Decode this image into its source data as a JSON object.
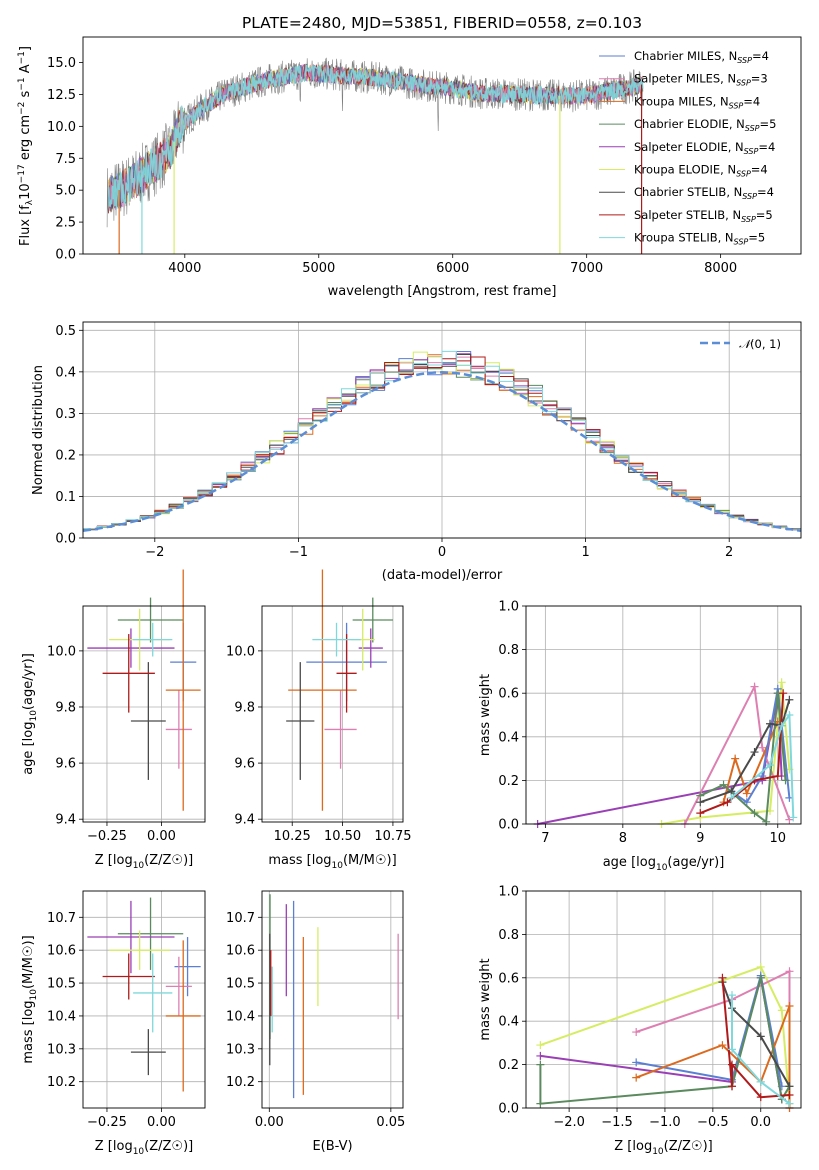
{
  "colors": {
    "chabrier_miles": "#5b7fd3",
    "salpeter_miles": "#dd7fb1",
    "kroupa_miles": "#dc6a1e",
    "chabrier_elodie": "#5a8a5e",
    "salpeter_elodie": "#9a3fb5",
    "kroupa_elodie": "#d6ec63",
    "chabrier_stelib": "#4a4a4a",
    "salpeter_stelib": "#b01a1a",
    "kroupa_stelib": "#7fd8dc",
    "normal": "#5b8ed6",
    "grid": "#b0b0b0"
  },
  "chart_data": [
    {
      "id": "spectrum",
      "type": "line",
      "title": "PLATE=2480, MJD=53851, FIBERID=0558, z=0.103",
      "xlabel": "wavelength [Angstrom, rest frame]",
      "ylabel": "Flux [f",
      "ylabel_parts": [
        "Flux [f",
        "λ",
        "10",
        "−17",
        " erg cm",
        "−2",
        " s",
        "−1",
        " A",
        "−1",
        "]"
      ],
      "xlim": [
        3240,
        8600
      ],
      "ylim": [
        0,
        17
      ],
      "xticks": [
        "4000",
        "5000",
        "6000",
        "7000",
        "8000"
      ],
      "yticks": [
        "0.0",
        "2.5",
        "5.0",
        "7.5",
        "10.0",
        "12.5",
        "15.0"
      ],
      "grid": false,
      "legend_position": "upper right",
      "legend": [
        {
          "label": "Chabrier MILES, N",
          "sub": "SSP",
          "n": "=4",
          "color_key": "chabrier_miles"
        },
        {
          "label": "Salpeter MILES, N",
          "sub": "SSP",
          "n": "=3",
          "color_key": "salpeter_miles"
        },
        {
          "label": "Kroupa MILES, N",
          "sub": "SSP",
          "n": "=4",
          "color_key": "kroupa_miles"
        },
        {
          "label": "Chabrier ELODIE, N",
          "sub": "SSP",
          "n": "=5",
          "color_key": "chabrier_elodie"
        },
        {
          "label": "Salpeter ELODIE, N",
          "sub": "SSP",
          "n": "=4",
          "color_key": "salpeter_elodie"
        },
        {
          "label": "Kroupa ELODIE, N",
          "sub": "SSP",
          "n": "=4",
          "color_key": "kroupa_elodie"
        },
        {
          "label": "Chabrier STELIB, N",
          "sub": "SSP",
          "n": "=4",
          "color_key": "chabrier_stelib"
        },
        {
          "label": "Salpeter STELIB, N",
          "sub": "SSP",
          "n": "=5",
          "color_key": "salpeter_stelib"
        },
        {
          "label": "Kroupa STELIB, N",
          "sub": "SSP",
          "n": "=5",
          "color_key": "kroupa_stelib"
        }
      ],
      "continuum": {
        "x": [
          3420,
          3550,
          3680,
          3800,
          3900,
          3960,
          4100,
          4300,
          4600,
          4900,
          5200,
          5500,
          5800,
          6000,
          6200,
          6500,
          6800,
          7000,
          7200,
          7420
        ],
        "y": [
          4.6,
          5.2,
          6.2,
          7.2,
          8.2,
          10.0,
          11.2,
          12.6,
          13.6,
          14.2,
          14.0,
          13.7,
          13.2,
          13.0,
          12.6,
          12.5,
          12.4,
          12.4,
          12.8,
          13.3
        ]
      },
      "dropouts": [
        {
          "x": 3510,
          "color_key": "kroupa_miles"
        },
        {
          "x": 3680,
          "color_key": "kroupa_stelib"
        },
        {
          "x": 3920,
          "color_key": "kroupa_elodie"
        },
        {
          "x": 6800,
          "color_key": "kroupa_elodie"
        },
        {
          "x": 7410,
          "color_key": "salpeter_stelib"
        }
      ]
    },
    {
      "id": "residuals",
      "type": "histogram",
      "xlabel": "(data-model)/error",
      "ylabel": "Normed distribution",
      "xlim": [
        -2.5,
        2.5
      ],
      "ylim": [
        0,
        0.52
      ],
      "xticks": [
        "−2",
        "−1",
        "0",
        "1",
        "2"
      ],
      "xtick_values": [
        -2,
        -1,
        0,
        1,
        2
      ],
      "yticks": [
        "0.0",
        "0.1",
        "0.2",
        "0.3",
        "0.4",
        "0.5"
      ],
      "ytick_values": [
        0,
        0.1,
        0.2,
        0.3,
        0.4,
        0.5
      ],
      "grid": true,
      "bin_width": 0.1,
      "bin_start": -2.5,
      "legend": [
        {
          "label": "(0, 1)",
          "prefix": "𝒩",
          "color_key": "normal"
        }
      ],
      "legend_position": "upper right"
    },
    {
      "id": "age_vs_Z",
      "type": "errorbar",
      "xlabel": "Z [log10(Z/Z☉)]",
      "ylabel": "age  [log10(age/yr)]",
      "xlim": [
        -0.36,
        0.2
      ],
      "ylim": [
        9.39,
        10.16
      ],
      "xticks": [
        "−0.25",
        "0.00"
      ],
      "xtick_values": [
        -0.25,
        0.0
      ],
      "yticks": [
        "9.4",
        "9.6",
        "9.8",
        "10.0"
      ],
      "ytick_values": [
        9.4,
        9.6,
        9.8,
        10.0
      ],
      "grid": true,
      "points": [
        {
          "color_key": "chabrier_miles",
          "x": 0.1,
          "xerr": 0.06,
          "y": 9.96,
          "yerr": 0.14
        },
        {
          "color_key": "salpeter_miles",
          "x": 0.08,
          "xerr": 0.06,
          "y": 9.72,
          "yerr": 0.14
        },
        {
          "color_key": "kroupa_miles",
          "x": 0.1,
          "xerr": 0.08,
          "y": 9.86,
          "yerr": 0.43
        },
        {
          "color_key": "chabrier_elodie",
          "x": -0.05,
          "xerr": 0.15,
          "y": 10.11,
          "yerr": 0.08
        },
        {
          "color_key": "salpeter_elodie",
          "x": -0.14,
          "xerr": 0.2,
          "y": 10.01,
          "yerr": 0.07
        },
        {
          "color_key": "kroupa_elodie",
          "x": -0.1,
          "xerr": 0.14,
          "y": 10.04,
          "yerr": 0.11
        },
        {
          "color_key": "chabrier_stelib",
          "x": -0.06,
          "xerr": 0.08,
          "y": 9.75,
          "yerr": 0.21
        },
        {
          "color_key": "salpeter_stelib",
          "x": -0.15,
          "xerr": 0.12,
          "y": 9.92,
          "yerr": 0.14
        },
        {
          "color_key": "kroupa_stelib",
          "x": -0.04,
          "xerr": 0.09,
          "y": 10.04,
          "yerr": 0.06
        }
      ]
    },
    {
      "id": "age_vs_mass",
      "type": "errorbar",
      "xlabel": "mass [log10(M/M☉)]",
      "ylabel": "",
      "xlim": [
        10.1,
        10.8
      ],
      "ylim": [
        9.39,
        10.16
      ],
      "xticks": [
        "10.25",
        "10.50",
        "10.75"
      ],
      "xtick_values": [
        10.25,
        10.5,
        10.75
      ],
      "yticks": [
        "9.4",
        "9.6",
        "9.8",
        "10.0"
      ],
      "ytick_values": [
        9.4,
        9.6,
        9.8,
        10.0
      ],
      "grid": true,
      "points": [
        {
          "color_key": "chabrier_miles",
          "x": 10.52,
          "xerr": 0.2,
          "y": 9.96,
          "yerr": 0.14
        },
        {
          "color_key": "salpeter_miles",
          "x": 10.49,
          "xerr": 0.08,
          "y": 9.72,
          "yerr": 0.14
        },
        {
          "color_key": "kroupa_miles",
          "x": 10.4,
          "xerr": 0.17,
          "y": 9.86,
          "yerr": 0.43
        },
        {
          "color_key": "chabrier_elodie",
          "x": 10.65,
          "xerr": 0.1,
          "y": 10.11,
          "yerr": 0.08
        },
        {
          "color_key": "salpeter_elodie",
          "x": 10.64,
          "xerr": 0.06,
          "y": 10.01,
          "yerr": 0.07
        },
        {
          "color_key": "kroupa_elodie",
          "x": 10.6,
          "xerr": 0.06,
          "y": 10.04,
          "yerr": 0.11
        },
        {
          "color_key": "chabrier_stelib",
          "x": 10.29,
          "xerr": 0.07,
          "y": 9.75,
          "yerr": 0.21
        },
        {
          "color_key": "salpeter_stelib",
          "x": 10.52,
          "xerr": 0.05,
          "y": 9.92,
          "yerr": 0.14
        },
        {
          "color_key": "kroupa_stelib",
          "x": 10.47,
          "xerr": 0.12,
          "y": 10.04,
          "yerr": 0.06
        }
      ]
    },
    {
      "id": "weight_vs_age",
      "type": "line",
      "xlabel": "age  [log10(age/yr)]",
      "ylabel": "mass weight",
      "xlim": [
        6.75,
        10.3
      ],
      "ylim": [
        0,
        1
      ],
      "xticks": [
        "7",
        "8",
        "9",
        "10"
      ],
      "xtick_values": [
        7,
        8,
        9,
        10
      ],
      "yticks": [
        "0.0",
        "0.2",
        "0.4",
        "0.6",
        "0.8",
        "1.0"
      ],
      "ytick_values": [
        0,
        0.2,
        0.4,
        0.6,
        0.8,
        1.0
      ],
      "grid": true,
      "series": [
        {
          "color_key": "salpeter_elodie",
          "x": [
            6.9,
            9.8,
            10.0,
            10.05
          ],
          "y": [
            0.0,
            0.2,
            0.6,
            0.22
          ]
        },
        {
          "color_key": "kroupa_elodie",
          "x": [
            8.5,
            9.0,
            9.9,
            10.05,
            10.15
          ],
          "y": [
            0.0,
            0.03,
            0.06,
            0.65,
            0.25
          ]
        },
        {
          "color_key": "salpeter_miles",
          "x": [
            8.8,
            9.7,
            9.8,
            10.15
          ],
          "y": [
            0.0,
            0.63,
            0.35,
            0.02
          ]
        },
        {
          "color_key": "kroupa_miles",
          "x": [
            9.3,
            9.45,
            9.6,
            10.0
          ],
          "y": [
            0.1,
            0.3,
            0.14,
            0.47
          ]
        },
        {
          "color_key": "chabrier_miles",
          "x": [
            9.4,
            9.6,
            9.8,
            10.0,
            10.15
          ],
          "y": [
            0.15,
            0.1,
            0.22,
            0.62,
            0.12
          ]
        },
        {
          "color_key": "chabrier_elodie",
          "x": [
            9.0,
            9.3,
            9.7,
            9.85,
            10.0,
            10.1
          ],
          "y": [
            0.13,
            0.18,
            0.05,
            0.01,
            0.6,
            0.2
          ]
        },
        {
          "color_key": "chabrier_stelib",
          "x": [
            9.0,
            9.4,
            9.7,
            9.9,
            10.05,
            10.15
          ],
          "y": [
            0.1,
            0.15,
            0.33,
            0.46,
            0.45,
            0.57
          ]
        },
        {
          "color_key": "salpeter_stelib",
          "x": [
            9.0,
            9.35,
            9.7,
            10.0,
            10.07
          ],
          "y": [
            0.05,
            0.1,
            0.2,
            0.22,
            0.6
          ]
        },
        {
          "color_key": "kroupa_stelib",
          "x": [
            9.4,
            9.9,
            10.05,
            10.15,
            10.2
          ],
          "y": [
            0.12,
            0.27,
            0.45,
            0.5,
            0.03
          ]
        }
      ]
    },
    {
      "id": "mass_vs_Z",
      "type": "errorbar",
      "xlabel": "Z [log10(Z/Z☉)]",
      "ylabel": "mass [log10(M/M☉)]",
      "xlim": [
        -0.36,
        0.2
      ],
      "ylim": [
        10.12,
        10.78
      ],
      "xticks": [
        "−0.25",
        "0.00"
      ],
      "xtick_values": [
        -0.25,
        0.0
      ],
      "yticks": [
        "10.2",
        "10.3",
        "10.4",
        "10.5",
        "10.6",
        "10.7"
      ],
      "ytick_values": [
        10.2,
        10.3,
        10.4,
        10.5,
        10.6,
        10.7
      ],
      "grid": true,
      "points": [
        {
          "color_key": "chabrier_miles",
          "x": 0.12,
          "xerr": 0.06,
          "y": 10.55,
          "yerr": 0.09
        },
        {
          "color_key": "salpeter_miles",
          "x": 0.08,
          "xerr": 0.06,
          "y": 10.49,
          "yerr": 0.09
        },
        {
          "color_key": "kroupa_miles",
          "x": 0.1,
          "xerr": 0.08,
          "y": 10.4,
          "yerr": 0.23
        },
        {
          "color_key": "chabrier_elodie",
          "x": -0.05,
          "xerr": 0.15,
          "y": 10.65,
          "yerr": 0.11
        },
        {
          "color_key": "salpeter_elodie",
          "x": -0.14,
          "xerr": 0.2,
          "y": 10.64,
          "yerr": 0.11
        },
        {
          "color_key": "kroupa_elodie",
          "x": -0.1,
          "xerr": 0.14,
          "y": 10.6,
          "yerr": 0.06
        },
        {
          "color_key": "chabrier_stelib",
          "x": -0.06,
          "xerr": 0.08,
          "y": 10.29,
          "yerr": 0.07
        },
        {
          "color_key": "salpeter_stelib",
          "x": -0.15,
          "xerr": 0.12,
          "y": 10.52,
          "yerr": 0.07
        },
        {
          "color_key": "kroupa_stelib",
          "x": -0.04,
          "xerr": 0.09,
          "y": 10.47,
          "yerr": 0.12
        }
      ]
    },
    {
      "id": "mass_vs_ebv",
      "type": "errorbar",
      "xlabel": "E(B-V)",
      "ylabel": "",
      "xlim": [
        -0.003,
        0.055
      ],
      "ylim": [
        10.12,
        10.78
      ],
      "xticks": [
        "0.00",
        "0.05"
      ],
      "xtick_values": [
        0.0,
        0.05
      ],
      "yticks": [
        "10.2",
        "10.3",
        "10.4",
        "10.5",
        "10.6",
        "10.7"
      ],
      "ytick_values": [
        10.2,
        10.3,
        10.4,
        10.5,
        10.6,
        10.7
      ],
      "grid": true,
      "points": [
        {
          "color_key": "chabrier_miles",
          "x": 0.01,
          "xerr": 0,
          "y": 10.45,
          "yerr": 0.3
        },
        {
          "color_key": "salpeter_miles",
          "x": 0.053,
          "xerr": 0,
          "y": 10.52,
          "yerr": 0.13
        },
        {
          "color_key": "kroupa_miles",
          "x": 0.014,
          "xerr": 0,
          "y": 10.4,
          "yerr": 0.24
        },
        {
          "color_key": "chabrier_elodie",
          "x": 0.0003,
          "xerr": 0,
          "y": 10.55,
          "yerr": 0.22
        },
        {
          "color_key": "salpeter_elodie",
          "x": 0.007,
          "xerr": 0,
          "y": 10.6,
          "yerr": 0.14
        },
        {
          "color_key": "kroupa_elodie",
          "x": 0.02,
          "xerr": 0,
          "y": 10.55,
          "yerr": 0.12
        },
        {
          "color_key": "chabrier_stelib",
          "x": 0.0002,
          "xerr": 0,
          "y": 10.45,
          "yerr": 0.2
        },
        {
          "color_key": "salpeter_stelib",
          "x": 0.0006,
          "xerr": 0,
          "y": 10.5,
          "yerr": 0.1
        },
        {
          "color_key": "kroupa_stelib",
          "x": 0.0012,
          "xerr": 0,
          "y": 10.45,
          "yerr": 0.1
        }
      ]
    },
    {
      "id": "weight_vs_Z",
      "type": "line",
      "xlabel": "Z [log10(Z/Z☉)]",
      "ylabel": "mass weight",
      "xlim": [
        -2.45,
        0.42
      ],
      "ylim": [
        0,
        1
      ],
      "xticks": [
        "−2.0",
        "−1.5",
        "−1.0",
        "−0.5",
        "0.0"
      ],
      "xtick_values": [
        -2.0,
        -1.5,
        -1.0,
        -0.5,
        0.0
      ],
      "yticks": [
        "0.0",
        "0.2",
        "0.4",
        "0.6",
        "0.8",
        "1.0"
      ],
      "ytick_values": [
        0,
        0.2,
        0.4,
        0.6,
        0.8,
        1.0
      ],
      "grid": true,
      "series": [
        {
          "color_key": "kroupa_elodie",
          "x": [
            -2.3,
            0.0,
            0.22,
            0.3
          ],
          "y": [
            0.29,
            0.65,
            0.45,
            0.02
          ]
        },
        {
          "color_key": "salpeter_miles",
          "x": [
            -1.3,
            -0.3,
            0.3,
            0.3
          ],
          "y": [
            0.35,
            0.5,
            0.63,
            0.0
          ]
        },
        {
          "color_key": "salpeter_elodie",
          "x": [
            -2.3,
            -0.3,
            0.0,
            0.22
          ],
          "y": [
            0.24,
            0.12,
            0.6,
            0.04
          ]
        },
        {
          "color_key": "chabrier_miles",
          "x": [
            -1.3,
            -0.3,
            0.0,
            0.22
          ],
          "y": [
            0.21,
            0.13,
            0.61,
            0.1
          ]
        },
        {
          "color_key": "kroupa_miles",
          "x": [
            -1.3,
            -0.4,
            0.0,
            0.3,
            0.3
          ],
          "y": [
            0.14,
            0.29,
            0.12,
            0.47,
            0.0
          ]
        },
        {
          "color_key": "chabrier_elodie",
          "x": [
            -2.3,
            -2.3,
            -0.3,
            0.0,
            0.22,
            0.3
          ],
          "y": [
            0.2,
            0.02,
            0.1,
            0.6,
            0.04,
            0.1
          ]
        },
        {
          "color_key": "chabrier_stelib",
          "x": [
            -0.4,
            -0.3,
            0.0,
            0.3
          ],
          "y": [
            0.58,
            0.46,
            0.33,
            0.1
          ]
        },
        {
          "color_key": "salpeter_stelib",
          "x": [
            -0.4,
            -0.3,
            -0.3,
            0.0,
            0.3
          ],
          "y": [
            0.6,
            0.1,
            0.2,
            0.05,
            0.06
          ]
        },
        {
          "color_key": "kroupa_stelib",
          "x": [
            -0.3,
            -0.3,
            0.0,
            0.3
          ],
          "y": [
            0.52,
            0.27,
            0.12,
            0.02
          ]
        }
      ]
    }
  ]
}
